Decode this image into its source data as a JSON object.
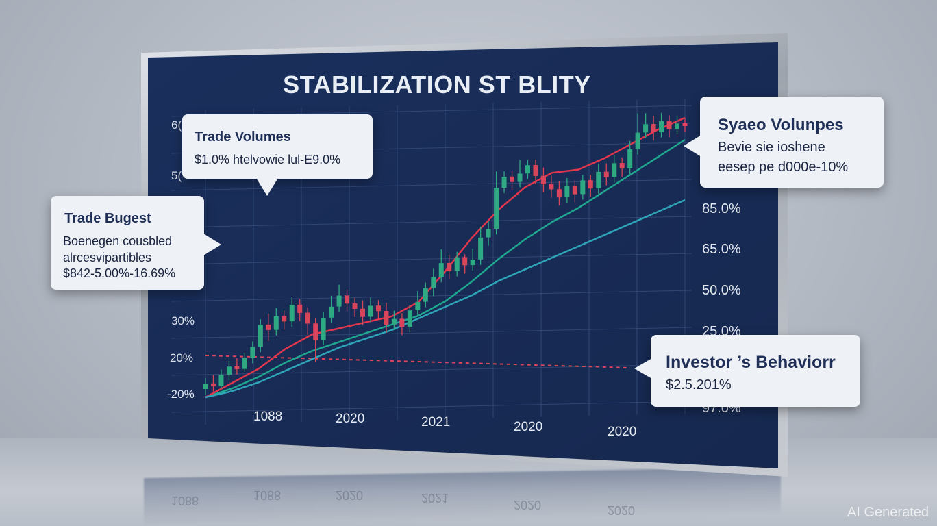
{
  "colors": {
    "screen_bg": "#1a2f5c",
    "grid": "#3b5283",
    "up_candle": "#2fa982",
    "down_candle": "#d9455a",
    "line_red": "#e0374d",
    "line_teal_upper": "#1fa78f",
    "line_teal_lower": "#2fa6b8",
    "dashed_ref": "#d9455a"
  },
  "title": "STABILIZATION ST BLITY",
  "left_axis": {
    "labels": [
      {
        "text": "6("
      },
      {
        "text": "5("
      },
      {
        "text": "30%"
      },
      {
        "text": "20%"
      },
      {
        "text": "-20%"
      }
    ]
  },
  "right_axis": {
    "labels": [
      {
        "text": "85.0%"
      },
      {
        "text": "65.0%"
      },
      {
        "text": "50.0%"
      },
      {
        "text": "25.0%"
      },
      {
        "text": "97.0%"
      }
    ]
  },
  "x_axis": {
    "labels": [
      "1088",
      "2020",
      "2021",
      "2020",
      "2020"
    ]
  },
  "callouts": {
    "trade_volumes": {
      "title": "Trade Volumes",
      "line1": "$1.0% htelvowie lul-E9.0%"
    },
    "trade_bugest": {
      "title": "Trade Bugest",
      "line1": "Boenegen cousbled",
      "line2": "alrcesvipartibles",
      "line3": "$842-5.00%-16.69%"
    },
    "syaeo_volunpes": {
      "title": "Syaeo Volunpes",
      "line1": "Bevie sie ioshene",
      "line2": "eesep pe d000e-10%"
    },
    "investor_behavior": {
      "title": "Investor ’s Behaviorr",
      "line1": "$2.5.201%"
    }
  },
  "watermark": "AI Generated",
  "chart_data": {
    "type": "line",
    "title": "STABILIZATION ST BLITY",
    "x_ticks": [
      "1088",
      "2020",
      "2021",
      "2020",
      "2020"
    ],
    "y_left_ticks": [
      "-20%",
      "20%",
      "30%",
      "5(",
      "6("
    ],
    "y_right_ticks": [
      "97.0%",
      "25.0%",
      "50.0%",
      "65.0%",
      "85.0%"
    ],
    "grid": true,
    "series": [
      {
        "values": [
          0.0,
          0.03,
          0.07,
          0.12,
          0.16,
          0.19,
          0.22,
          0.25,
          0.28,
          0.33,
          0.4,
          0.48,
          0.55,
          0.61,
          0.66,
          0.72,
          0.78,
          0.84,
          0.9
        ]
      },
      {
        "values": [
          0.0,
          0.05,
          0.1,
          0.17,
          0.22,
          0.24,
          0.26,
          0.28,
          0.33,
          0.44,
          0.56,
          0.66,
          0.74,
          0.79,
          0.8,
          0.84,
          0.89,
          0.94,
          0.98
        ]
      },
      {
        "values": [
          0.0,
          0.02,
          0.05,
          0.09,
          0.13,
          0.17,
          0.2,
          0.23,
          0.27,
          0.31,
          0.35,
          0.4,
          0.44,
          0.48,
          0.52,
          0.56,
          0.6,
          0.64,
          0.68
        ]
      }
    ],
    "candles": [
      [
        0.03,
        0.05,
        0.01,
        0.07
      ],
      [
        0.05,
        0.04,
        0.02,
        0.08
      ],
      [
        0.04,
        0.08,
        0.03,
        0.1
      ],
      [
        0.08,
        0.11,
        0.06,
        0.13
      ],
      [
        0.11,
        0.1,
        0.08,
        0.14
      ],
      [
        0.1,
        0.14,
        0.09,
        0.16
      ],
      [
        0.14,
        0.18,
        0.12,
        0.2
      ],
      [
        0.18,
        0.26,
        0.16,
        0.28
      ],
      [
        0.26,
        0.24,
        0.2,
        0.3
      ],
      [
        0.24,
        0.29,
        0.22,
        0.32
      ],
      [
        0.29,
        0.27,
        0.24,
        0.31
      ],
      [
        0.27,
        0.33,
        0.25,
        0.36
      ],
      [
        0.33,
        0.3,
        0.27,
        0.35
      ],
      [
        0.3,
        0.26,
        0.22,
        0.32
      ],
      [
        0.26,
        0.2,
        0.12,
        0.28
      ],
      [
        0.2,
        0.28,
        0.18,
        0.3
      ],
      [
        0.28,
        0.32,
        0.26,
        0.36
      ],
      [
        0.32,
        0.36,
        0.3,
        0.4
      ],
      [
        0.36,
        0.33,
        0.3,
        0.38
      ],
      [
        0.33,
        0.31,
        0.28,
        0.35
      ],
      [
        0.31,
        0.28,
        0.25,
        0.34
      ],
      [
        0.28,
        0.32,
        0.26,
        0.35
      ],
      [
        0.32,
        0.3,
        0.27,
        0.34
      ],
      [
        0.3,
        0.25,
        0.22,
        0.33
      ],
      [
        0.25,
        0.27,
        0.23,
        0.3
      ],
      [
        0.27,
        0.24,
        0.21,
        0.29
      ],
      [
        0.24,
        0.3,
        0.22,
        0.32
      ],
      [
        0.3,
        0.33,
        0.28,
        0.37
      ],
      [
        0.33,
        0.38,
        0.31,
        0.4
      ],
      [
        0.38,
        0.42,
        0.35,
        0.45
      ],
      [
        0.42,
        0.47,
        0.4,
        0.52
      ],
      [
        0.47,
        0.44,
        0.41,
        0.5
      ],
      [
        0.44,
        0.49,
        0.42,
        0.51
      ],
      [
        0.49,
        0.46,
        0.43,
        0.5
      ],
      [
        0.46,
        0.48,
        0.44,
        0.52
      ],
      [
        0.48,
        0.56,
        0.46,
        0.6
      ],
      [
        0.56,
        0.59,
        0.53,
        0.62
      ],
      [
        0.59,
        0.74,
        0.57,
        0.8
      ],
      [
        0.74,
        0.78,
        0.72,
        0.8
      ],
      [
        0.78,
        0.76,
        0.73,
        0.8
      ],
      [
        0.76,
        0.79,
        0.74,
        0.84
      ],
      [
        0.79,
        0.82,
        0.77,
        0.84
      ],
      [
        0.82,
        0.78,
        0.75,
        0.84
      ],
      [
        0.78,
        0.75,
        0.72,
        0.81
      ],
      [
        0.75,
        0.73,
        0.7,
        0.78
      ],
      [
        0.73,
        0.7,
        0.67,
        0.76
      ],
      [
        0.7,
        0.74,
        0.68,
        0.77
      ],
      [
        0.74,
        0.71,
        0.68,
        0.76
      ],
      [
        0.71,
        0.76,
        0.69,
        0.78
      ],
      [
        0.76,
        0.73,
        0.7,
        0.78
      ],
      [
        0.73,
        0.79,
        0.71,
        0.82
      ],
      [
        0.79,
        0.77,
        0.74,
        0.82
      ],
      [
        0.77,
        0.82,
        0.75,
        0.85
      ],
      [
        0.82,
        0.8,
        0.77,
        0.84
      ],
      [
        0.8,
        0.87,
        0.78,
        0.9
      ],
      [
        0.87,
        0.93,
        0.85,
        1.0
      ],
      [
        0.93,
        0.96,
        0.91,
        1.0
      ],
      [
        0.96,
        0.93,
        0.9,
        0.99
      ],
      [
        0.93,
        0.97,
        0.91,
        1.0
      ],
      [
        0.97,
        0.94,
        0.91,
        0.99
      ],
      [
        0.94,
        0.96,
        0.92,
        0.99
      ],
      [
        0.96,
        0.95,
        0.93,
        0.98
      ]
    ]
  }
}
